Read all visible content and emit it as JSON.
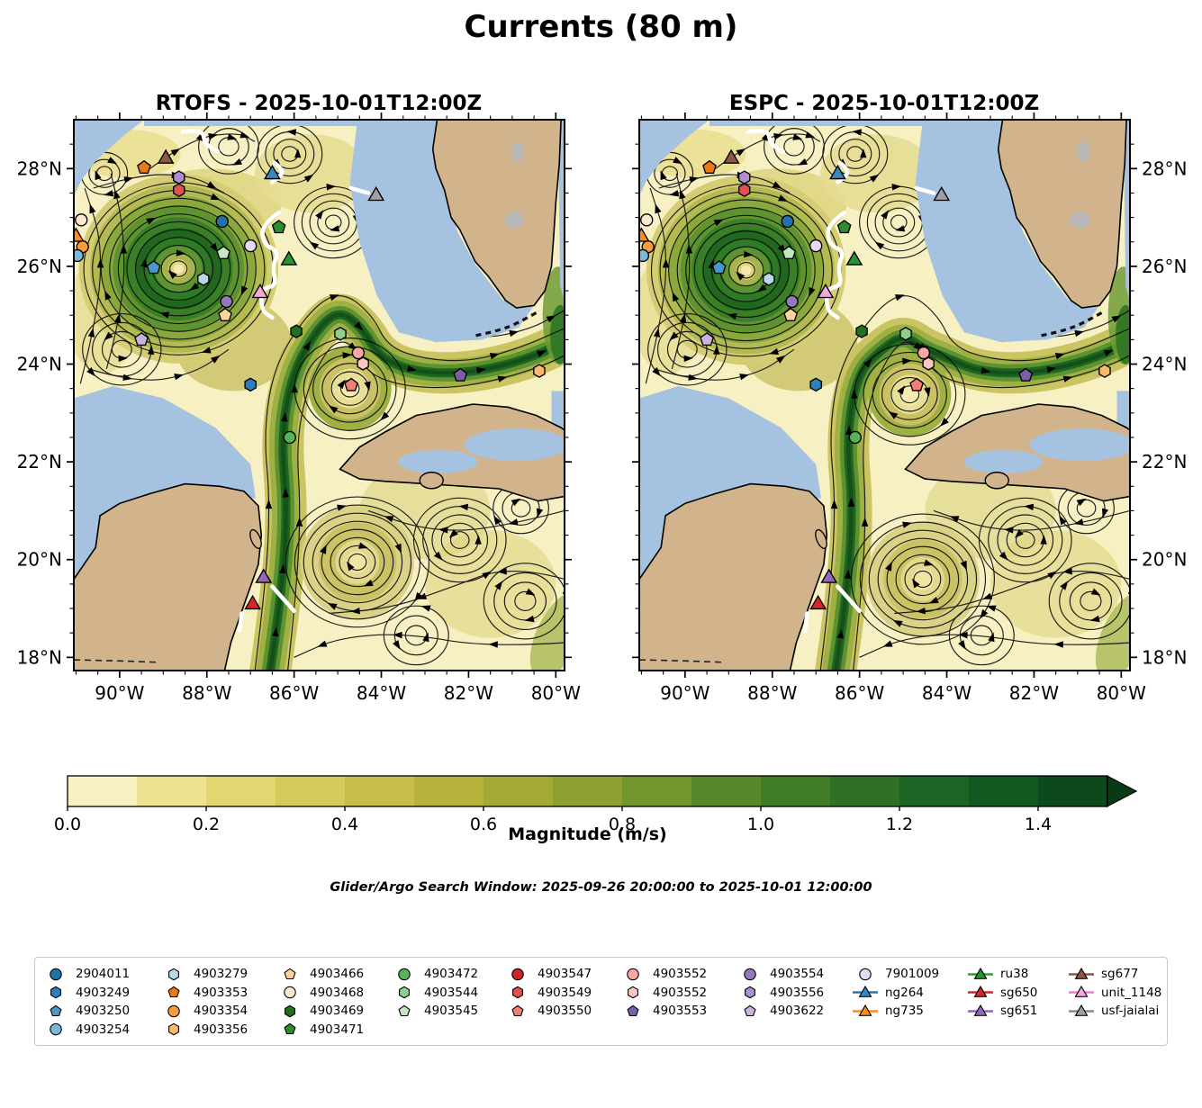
{
  "title": "Currents (80 m)",
  "panels": [
    {
      "id": "rtofs",
      "title": "RTOFS - 2025-10-01T12:00Z"
    },
    {
      "id": "espc",
      "title": "ESPC - 2025-10-01T12:00Z"
    }
  ],
  "axes": {
    "x_ticks": [
      {
        "label": "90°W",
        "lon": -90
      },
      {
        "label": "88°W",
        "lon": -88
      },
      {
        "label": "86°W",
        "lon": -86
      },
      {
        "label": "84°W",
        "lon": -84
      },
      {
        "label": "82°W",
        "lon": -82
      },
      {
        "label": "80°W",
        "lon": -80
      }
    ],
    "y_ticks": [
      {
        "label": "28°N",
        "lat": 28
      },
      {
        "label": "26°N",
        "lat": 26
      },
      {
        "label": "24°N",
        "lat": 24
      },
      {
        "label": "22°N",
        "lat": 22
      },
      {
        "label": "20°N",
        "lat": 20
      },
      {
        "label": "18°N",
        "lat": 18
      }
    ]
  },
  "colorbar": {
    "label": "Magnitude (m/s)",
    "ticks": [
      {
        "label": "0.0",
        "value": 0.0
      },
      {
        "label": "0.2",
        "value": 0.2
      },
      {
        "label": "0.4",
        "value": 0.4
      },
      {
        "label": "0.6",
        "value": 0.6
      },
      {
        "label": "0.8",
        "value": 0.8
      },
      {
        "label": "1.0",
        "value": 1.0
      },
      {
        "label": "1.2",
        "value": 1.2
      },
      {
        "label": "1.4",
        "value": 1.4
      }
    ],
    "range": [
      0,
      1.5
    ],
    "extend": "max",
    "segment_colors": [
      "#f7f1c3",
      "#eee390",
      "#e2d673",
      "#d6ca5b",
      "#c9bd49",
      "#b7b23c",
      "#a3a934",
      "#8ba02e",
      "#71962c",
      "#57882b",
      "#407c28",
      "#2d7026",
      "#1d6424",
      "#135721",
      "#0c4a1d"
    ],
    "arrow_color": "#083a16"
  },
  "note": "Glider/Argo Search Window: 2025-09-26 20:00:00 to 2025-10-01 12:00:00",
  "legend": {
    "columns": [
      [
        {
          "label": "2904011",
          "shape": "circle",
          "color": "#2470a8"
        },
        {
          "label": "4903249",
          "shape": "hexagon",
          "color": "#2e7ebc"
        },
        {
          "label": "4903250",
          "shape": "pentagon",
          "color": "#4a98c9"
        },
        {
          "label": "4903254",
          "shape": "circle",
          "color": "#7ab8dc"
        }
      ],
      [
        {
          "label": "4903279",
          "shape": "hexagon",
          "color": "#b8d8ea"
        },
        {
          "label": "4903353",
          "shape": "pentagon",
          "color": "#e97817"
        },
        {
          "label": "4903354",
          "shape": "circle",
          "color": "#f89a3e"
        },
        {
          "label": "4903356",
          "shape": "hexagon",
          "color": "#fcb96d"
        }
      ],
      [
        {
          "label": "4903466",
          "shape": "pentagon",
          "color": "#fdd49e"
        },
        {
          "label": "4903468",
          "shape": "circle",
          "color": "#fde8cd"
        },
        {
          "label": "4903469",
          "shape": "hexagon",
          "color": "#20701f"
        },
        {
          "label": "4903471",
          "shape": "pentagon",
          "color": "#2f8b2f"
        }
      ],
      [
        {
          "label": "4903472",
          "shape": "circle",
          "color": "#57b357"
        },
        {
          "label": "4903544",
          "shape": "hexagon",
          "color": "#8ed08b"
        },
        {
          "label": "4903545",
          "shape": "pentagon",
          "color": "#c4e7c0"
        }
      ],
      [
        {
          "label": "4903547",
          "shape": "circle",
          "color": "#cc2527"
        },
        {
          "label": "4903549",
          "shape": "hexagon",
          "color": "#e2514d"
        },
        {
          "label": "4903550",
          "shape": "pentagon",
          "color": "#ef7f72"
        }
      ],
      [
        {
          "label": "4903552",
          "shape": "circle",
          "color": "#f8a8a0"
        },
        {
          "label": "4903552",
          "shape": "hexagon",
          "color": "#fbc6bf"
        },
        {
          "label": "4903553",
          "shape": "pentagon",
          "color": "#7a5fa8"
        }
      ],
      [
        {
          "label": "4903554",
          "shape": "circle",
          "color": "#9378bd"
        },
        {
          "label": "4903556",
          "shape": "hexagon",
          "color": "#ab8fce"
        },
        {
          "label": "4903622",
          "shape": "pentagon",
          "color": "#c9b3dd"
        }
      ],
      [
        {
          "label": "7901009",
          "shape": "circle",
          "color": "#e6d9f2"
        },
        {
          "label": "ng264",
          "shape": "triangle",
          "color": "#3a87c0",
          "line": "#2577b2"
        },
        {
          "label": "ng735",
          "shape": "triangle",
          "color": "#fb8c1e",
          "line": "#fb8c1e"
        }
      ],
      [
        {
          "label": "ru38",
          "shape": "triangle",
          "color": "#2a9234",
          "line": "#2ca02c"
        },
        {
          "label": "sg650",
          "shape": "triangle",
          "color": "#d62728",
          "line": "#d62728"
        },
        {
          "label": "sg651",
          "shape": "triangle",
          "color": "#9467bd",
          "line": "#9467bd"
        }
      ],
      [
        {
          "label": "sg677",
          "shape": "triangle",
          "color": "#8c564b",
          "line": "#8c564b"
        },
        {
          "label": "unit_1148",
          "shape": "triangle",
          "color": "#f4a7dc",
          "line": "#ef7ad2"
        },
        {
          "label": "usf-jaialai",
          "shape": "triangle",
          "color": "#a0a0a0",
          "line": "#8a8a8a"
        }
      ]
    ]
  },
  "markers": [
    {
      "id": "sg677",
      "shape": "triangle",
      "color": "#8c564b",
      "lon": -88.94,
      "lat": 28.2
    },
    {
      "id": "4903353",
      "shape": "pentagon",
      "color": "#e97817",
      "lon": -89.44,
      "lat": 28.02
    },
    {
      "id": "4903556",
      "shape": "hexagon",
      "color": "#ab8fce",
      "lon": -88.64,
      "lat": 27.82
    },
    {
      "id": "4903549",
      "shape": "hexagon",
      "color": "#e2514d",
      "lon": -88.64,
      "lat": 27.56
    },
    {
      "id": "ng264",
      "shape": "triangle",
      "color": "#3a87c0",
      "lon": -86.5,
      "lat": 27.88
    },
    {
      "id": "usf-jaialai",
      "shape": "triangle",
      "color": "#a0a0a0",
      "lon": -84.12,
      "lat": 27.44
    },
    {
      "id": "4903468",
      "shape": "circle",
      "color": "#fde8cd",
      "lon": -90.88,
      "lat": 26.95
    },
    {
      "id": "ng735",
      "shape": "triangle",
      "color": "#fb8c1e",
      "lon": -91.0,
      "lat": 26.6
    },
    {
      "id": "4903354",
      "shape": "circle",
      "color": "#f89a3e",
      "lon": -90.85,
      "lat": 26.4
    },
    {
      "id": "4903254",
      "shape": "circle",
      "color": "#7ab8dc",
      "lon": -90.97,
      "lat": 26.22
    },
    {
      "id": "2904011",
      "shape": "circle",
      "color": "#2470a8",
      "lon": -87.65,
      "lat": 26.92
    },
    {
      "id": "4903471",
      "shape": "pentagon",
      "color": "#2f8b2f",
      "lon": -86.35,
      "lat": 26.8
    },
    {
      "id": "7901009",
      "shape": "circle",
      "color": "#e6d9f2",
      "lon": -87.0,
      "lat": 26.42
    },
    {
      "id": "4903545",
      "shape": "pentagon",
      "color": "#c4e7c0",
      "lon": -87.62,
      "lat": 26.27
    },
    {
      "id": "ru38",
      "shape": "triangle",
      "color": "#2a9234",
      "lon": -86.12,
      "lat": 26.12
    },
    {
      "id": "4903250",
      "shape": "pentagon",
      "color": "#4a98c9",
      "lon": -89.22,
      "lat": 25.97
    },
    {
      "id": "4903279",
      "shape": "hexagon",
      "color": "#b8d8ea",
      "lon": -88.08,
      "lat": 25.74
    },
    {
      "id": "unit_1148",
      "shape": "triangle",
      "color": "#f4a7dc",
      "lon": -86.78,
      "lat": 25.45
    },
    {
      "id": "4903554",
      "shape": "circle",
      "color": "#9378bd",
      "lon": -87.55,
      "lat": 25.28
    },
    {
      "id": "4903466",
      "shape": "pentagon",
      "color": "#fdd49e",
      "lon": -87.58,
      "lat": 25.0
    },
    {
      "id": "4903622",
      "shape": "pentagon",
      "color": "#c9b3dd",
      "lon": -89.5,
      "lat": 24.5
    },
    {
      "id": "4903469",
      "shape": "hexagon",
      "color": "#20701f",
      "lon": -85.95,
      "lat": 24.67
    },
    {
      "id": "4903544",
      "shape": "hexagon",
      "color": "#8ed08b",
      "lon": -84.94,
      "lat": 24.62
    },
    {
      "id": "4903552",
      "shape": "circle",
      "color": "#f8a8a0",
      "lon": -84.53,
      "lat": 24.23
    },
    {
      "id": "4903552",
      "shape": "hexagon",
      "color": "#fbc6bf",
      "lon": -84.42,
      "lat": 24.01
    },
    {
      "id": "4903550",
      "shape": "pentagon",
      "color": "#ef7f72",
      "lon": -84.69,
      "lat": 23.57
    },
    {
      "id": "4903553",
      "shape": "pentagon",
      "color": "#7a5fa8",
      "lon": -82.19,
      "lat": 23.77
    },
    {
      "id": "4903356",
      "shape": "hexagon",
      "color": "#fcb96d",
      "lon": -80.38,
      "lat": 23.86
    },
    {
      "id": "4903249",
      "shape": "hexagon",
      "color": "#2e7ebc",
      "lon": -87.0,
      "lat": 23.58
    },
    {
      "id": "4903472",
      "shape": "circle",
      "color": "#57b357",
      "lon": -86.1,
      "lat": 22.5
    },
    {
      "id": "sg651",
      "shape": "triangle",
      "color": "#9467bd",
      "lon": -86.7,
      "lat": 19.62
    },
    {
      "id": "sg650",
      "shape": "triangle",
      "color": "#d62728",
      "lon": -86.95,
      "lat": 19.08
    }
  ],
  "chart_data": {
    "type": "map-streamplot",
    "title": "Currents (80 m)",
    "panels": [
      {
        "model": "RTOFS",
        "valid_time": "2025-10-01T12:00Z"
      },
      {
        "model": "ESPC",
        "valid_time": "2025-10-01T12:00Z"
      }
    ],
    "variable": "ocean current magnitude",
    "depth_m": 80,
    "lon_range": [
      -91.05,
      -79.8
    ],
    "lat_range": [
      17.73,
      29.0
    ],
    "x_tick_labels": [
      "90°W",
      "88°W",
      "86°W",
      "84°W",
      "82°W",
      "80°W"
    ],
    "y_tick_labels": [
      "28°N",
      "26°N",
      "24°N",
      "22°N",
      "20°N",
      "18°N"
    ],
    "colorbar": {
      "label": "Magnitude (m/s)",
      "tick_values": [
        0.0,
        0.2,
        0.4,
        0.6,
        0.8,
        1.0,
        1.2,
        1.4
      ],
      "range": [
        0,
        1.5
      ],
      "extend": "max"
    },
    "search_window": "2025-09-26 20:00:00 to 2025-10-01 12:00:00",
    "platforms": [
      "2904011",
      "4903249",
      "4903250",
      "4903254",
      "4903279",
      "4903353",
      "4903354",
      "4903356",
      "4903466",
      "4903468",
      "4903469",
      "4903471",
      "4903472",
      "4903544",
      "4903545",
      "4903547",
      "4903549",
      "4903550",
      "4903552",
      "4903552",
      "4903553",
      "4903554",
      "4903556",
      "4903622",
      "7901009",
      "ng264",
      "ng735",
      "ru38",
      "sg650",
      "sg651",
      "sg677",
      "unit_1148",
      "usf-jaialai"
    ]
  }
}
